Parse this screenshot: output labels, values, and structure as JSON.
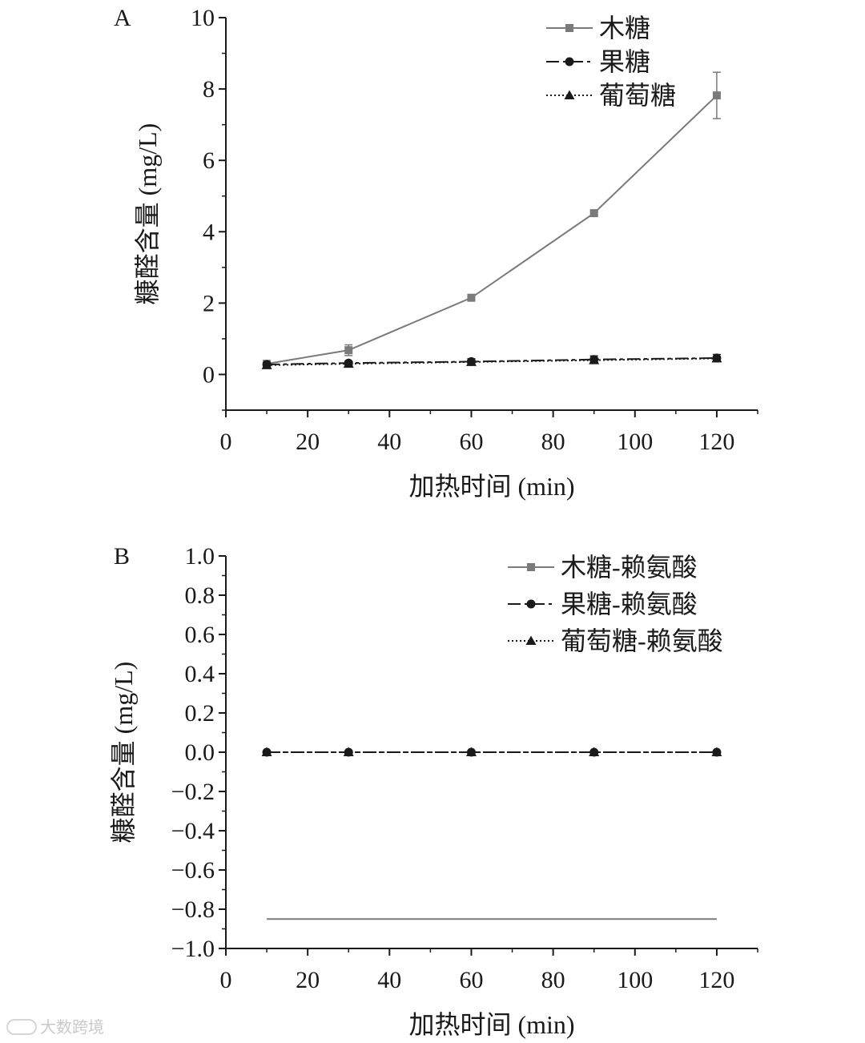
{
  "chart_data": [
    {
      "panel": "A",
      "type": "line",
      "xlabel": "加热时间 (min)",
      "ylabel": "糠醛含量 (mg/L)",
      "xlim": [
        0,
        130
      ],
      "ylim": [
        -1,
        10
      ],
      "xticks": [
        0,
        20,
        40,
        60,
        80,
        100,
        120
      ],
      "xtick_labels": [
        "0",
        "20",
        "40",
        "60",
        "80",
        "100",
        "120"
      ],
      "yticks": [
        0,
        2,
        4,
        6,
        8,
        10
      ],
      "ytick_labels": [
        "0",
        "2",
        "4",
        "6",
        "8",
        "10"
      ],
      "legend_position": "top-right",
      "x": [
        10,
        30,
        60,
        90,
        120
      ],
      "series": [
        {
          "name": "木糖",
          "marker": "square",
          "line": "solid",
          "color": "#7a7a7a",
          "values": [
            0.3,
            0.68,
            2.15,
            4.52,
            7.82
          ],
          "errors": [
            0.05,
            0.15,
            0.06,
            0.06,
            0.65
          ]
        },
        {
          "name": "果糖",
          "marker": "circle",
          "line": "dashed",
          "color": "#1a1a1a",
          "values": [
            0.28,
            0.32,
            0.36,
            0.42,
            0.46
          ],
          "errors": [
            0.05,
            0.05,
            0.08,
            0.1,
            0.1
          ]
        },
        {
          "name": "葡萄糖",
          "marker": "triangle",
          "line": "dotted",
          "color": "#1a1a1a",
          "values": [
            0.26,
            0.3,
            0.35,
            0.4,
            0.45
          ],
          "errors": [
            0.05,
            0.05,
            0.05,
            0.05,
            0.05
          ]
        }
      ]
    },
    {
      "panel": "B",
      "type": "line",
      "xlabel": "加热时间 (min)",
      "ylabel": "糠醛含量 (mg/L)",
      "xlim": [
        0,
        130
      ],
      "ylim": [
        -1,
        1
      ],
      "xticks": [
        0,
        20,
        40,
        60,
        80,
        100,
        120
      ],
      "xtick_labels": [
        "0",
        "20",
        "40",
        "60",
        "80",
        "100",
        "120"
      ],
      "yticks": [
        -1,
        -0.8,
        -0.6,
        -0.4,
        -0.2,
        0,
        0.2,
        0.4,
        0.6,
        0.8,
        1
      ],
      "ytick_labels": [
        "−1.0",
        "−0.8",
        "−0.6",
        "−0.4",
        "−0.2",
        "0.0",
        "0.2",
        "0.4",
        "0.6",
        "0.8",
        "1.0"
      ],
      "legend_position": "top-right",
      "x": [
        10,
        30,
        60,
        90,
        120
      ],
      "series": [
        {
          "name": "木糖-赖氨酸",
          "marker": "none",
          "line": "solid",
          "color": "#7a7a7a",
          "values": [
            -0.85,
            -0.85,
            -0.85,
            -0.85,
            -0.85
          ],
          "errors": [
            0,
            0,
            0,
            0,
            0
          ]
        },
        {
          "name": "果糖-赖氨酸",
          "marker": "circle",
          "line": "dashed",
          "color": "#1a1a1a",
          "values": [
            0,
            0,
            0,
            0,
            0
          ],
          "errors": [
            0,
            0,
            0,
            0,
            0
          ]
        },
        {
          "name": "葡萄糖-赖氨酸",
          "marker": "triangle",
          "line": "dotted",
          "color": "#1a1a1a",
          "values": [
            0,
            0,
            0,
            0,
            0
          ],
          "errors": [
            0,
            0,
            0,
            0,
            0
          ]
        }
      ]
    }
  ],
  "watermark": {
    "text": "大数跨境",
    "icon": "weibo-icon"
  }
}
